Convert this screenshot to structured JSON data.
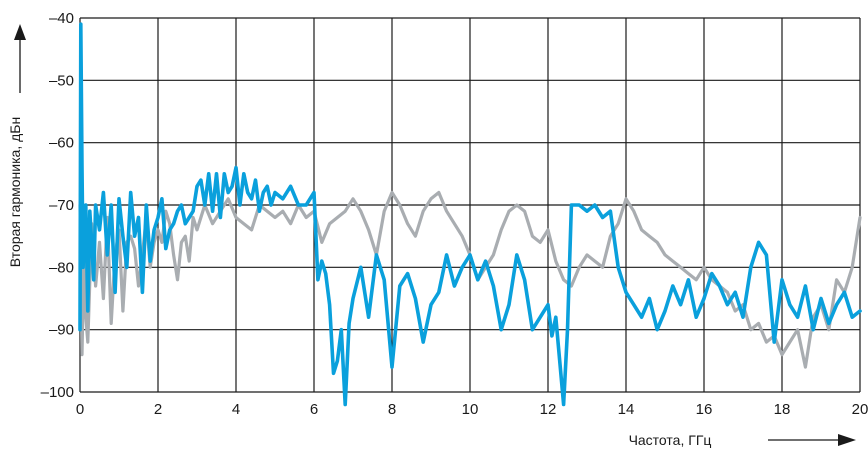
{
  "chart_data": {
    "type": "line",
    "title": "",
    "xlabel": "Частота, ГГц",
    "ylabel": "Вторая гармоника, дБн",
    "xlim": [
      0,
      20
    ],
    "ylim": [
      -100,
      -40
    ],
    "xticks": [
      0,
      2,
      4,
      6,
      8,
      10,
      12,
      14,
      16,
      18,
      20
    ],
    "yticks": [
      -40,
      -50,
      -60,
      -70,
      -80,
      -90,
      -100
    ],
    "xtick_labels": [
      "0",
      "2",
      "4",
      "6",
      "8",
      "10",
      "12",
      "14",
      "16",
      "18",
      "20"
    ],
    "ytick_labels": [
      "–40",
      "–50",
      "–60",
      "–70",
      "–80",
      "–90",
      "–100"
    ],
    "grid": true,
    "colors": {
      "grid": "#1a1a1a",
      "series_blue": "#0aa0dc",
      "series_gray": "#a9adb1"
    },
    "series": [
      {
        "color": "#a9adb1",
        "x": [
          0.0,
          0.05,
          0.1,
          0.15,
          0.2,
          0.3,
          0.4,
          0.5,
          0.6,
          0.7,
          0.8,
          0.9,
          1.0,
          1.1,
          1.2,
          1.3,
          1.4,
          1.5,
          1.6,
          1.7,
          1.8,
          1.9,
          2.0,
          2.1,
          2.2,
          2.3,
          2.4,
          2.5,
          2.6,
          2.7,
          2.8,
          2.9,
          3.0,
          3.2,
          3.4,
          3.6,
          3.8,
          4.0,
          4.2,
          4.4,
          4.6,
          4.8,
          5.0,
          5.2,
          5.4,
          5.6,
          5.8,
          6.0,
          6.2,
          6.4,
          6.6,
          6.8,
          7.0,
          7.2,
          7.4,
          7.6,
          7.8,
          8.0,
          8.2,
          8.4,
          8.6,
          8.8,
          9.0,
          9.2,
          9.4,
          9.6,
          9.8,
          10.0,
          10.2,
          10.4,
          10.6,
          10.8,
          11.0,
          11.2,
          11.4,
          11.6,
          11.8,
          12.0,
          12.2,
          12.4,
          12.6,
          12.8,
          13.0,
          13.2,
          13.4,
          13.6,
          13.8,
          14.0,
          14.2,
          14.4,
          14.6,
          14.8,
          15.0,
          15.2,
          15.4,
          15.6,
          15.8,
          16.0,
          16.2,
          16.4,
          16.6,
          16.8,
          17.0,
          17.2,
          17.4,
          17.6,
          17.8,
          18.0,
          18.2,
          18.4,
          18.6,
          18.8,
          19.0,
          19.2,
          19.4,
          19.6,
          19.8,
          20.0
        ],
        "y": [
          -70,
          -94,
          -78,
          -88,
          -92,
          -73,
          -83,
          -76,
          -85,
          -72,
          -89,
          -78,
          -74,
          -87,
          -76,
          -75,
          -77,
          -83,
          -78,
          -72,
          -80,
          -76,
          -74,
          -76,
          -71,
          -73,
          -78,
          -82,
          -76,
          -75,
          -79,
          -72,
          -74,
          -70,
          -73,
          -71,
          -69,
          -72,
          -73,
          -74,
          -70,
          -71,
          -72,
          -71,
          -73,
          -70,
          -72,
          -71,
          -76,
          -73,
          -72,
          -71,
          -69,
          -71,
          -74,
          -78,
          -71,
          -68,
          -70,
          -73,
          -75,
          -71,
          -69,
          -68,
          -71,
          -73,
          -75,
          -78,
          -82,
          -80,
          -78,
          -74,
          -71,
          -70,
          -71,
          -75,
          -76,
          -74,
          -79,
          -82,
          -83,
          -80,
          -78,
          -79,
          -80,
          -75,
          -73,
          -69,
          -71,
          -74,
          -75,
          -76,
          -78,
          -79,
          -80,
          -81,
          -82,
          -80,
          -82,
          -83,
          -84,
          -87,
          -86,
          -90,
          -89,
          -92,
          -91,
          -94,
          -92,
          -90,
          -96,
          -88,
          -86,
          -90,
          -82,
          -84,
          -80,
          -72
        ]
      },
      {
        "color": "#0aa0dc",
        "x": [
          0.0,
          0.02,
          0.05,
          0.08,
          0.12,
          0.15,
          0.2,
          0.25,
          0.3,
          0.35,
          0.4,
          0.5,
          0.6,
          0.7,
          0.8,
          0.9,
          1.0,
          1.1,
          1.2,
          1.3,
          1.4,
          1.5,
          1.6,
          1.7,
          1.8,
          1.9,
          2.0,
          2.1,
          2.2,
          2.3,
          2.4,
          2.5,
          2.6,
          2.7,
          2.8,
          2.9,
          3.0,
          3.1,
          3.2,
          3.3,
          3.4,
          3.5,
          3.6,
          3.7,
          3.8,
          3.9,
          4.0,
          4.1,
          4.2,
          4.3,
          4.4,
          4.5,
          4.6,
          4.7,
          4.8,
          4.9,
          5.0,
          5.2,
          5.4,
          5.6,
          5.8,
          6.0,
          6.1,
          6.2,
          6.3,
          6.4,
          6.5,
          6.6,
          6.7,
          6.8,
          6.9,
          7.0,
          7.2,
          7.4,
          7.6,
          7.8,
          8.0,
          8.2,
          8.4,
          8.6,
          8.8,
          9.0,
          9.2,
          9.4,
          9.6,
          9.8,
          10.0,
          10.2,
          10.4,
          10.6,
          10.8,
          11.0,
          11.2,
          11.4,
          11.6,
          11.8,
          12.0,
          12.1,
          12.2,
          12.3,
          12.4,
          12.5,
          12.6,
          12.8,
          13.0,
          13.2,
          13.4,
          13.6,
          13.8,
          14.0,
          14.2,
          14.4,
          14.6,
          14.8,
          15.0,
          15.2,
          15.4,
          15.6,
          15.8,
          16.0,
          16.2,
          16.4,
          16.6,
          16.8,
          17.0,
          17.2,
          17.4,
          17.6,
          17.8,
          18.0,
          18.2,
          18.4,
          18.6,
          18.8,
          19.0,
          19.2,
          19.4,
          19.6,
          19.8,
          20.0
        ],
        "y": [
          -90,
          -41,
          -64,
          -80,
          -72,
          -70,
          -87,
          -71,
          -76,
          -82,
          -70,
          -74,
          -68,
          -78,
          -70,
          -84,
          -69,
          -75,
          -80,
          -68,
          -75,
          -72,
          -84,
          -70,
          -79,
          -74,
          -72,
          -69,
          -77,
          -74,
          -73,
          -71,
          -70,
          -73,
          -72,
          -71,
          -67,
          -66,
          -70,
          -65,
          -71,
          -65,
          -72,
          -65,
          -68,
          -67,
          -64,
          -70,
          -65,
          -68,
          -69,
          -66,
          -71,
          -68,
          -67,
          -70,
          -68,
          -69,
          -67,
          -70,
          -70,
          -68,
          -82,
          -79,
          -81,
          -86,
          -97,
          -95,
          -90,
          -102,
          -89,
          -85,
          -80,
          -88,
          -78,
          -82,
          -96,
          -83,
          -81,
          -85,
          -92,
          -86,
          -84,
          -78,
          -83,
          -80,
          -78,
          -82,
          -79,
          -83,
          -90,
          -86,
          -78,
          -82,
          -90,
          -88,
          -86,
          -91,
          -88,
          -95,
          -102,
          -90,
          -70,
          -70,
          -71,
          -70,
          -72,
          -71,
          -80,
          -84,
          -86,
          -88,
          -85,
          -90,
          -87,
          -83,
          -86,
          -82,
          -88,
          -85,
          -81,
          -83,
          -86,
          -84,
          -88,
          -80,
          -76,
          -78,
          -92,
          -82,
          -86,
          -88,
          -83,
          -90,
          -85,
          -89,
          -86,
          -84,
          -88,
          -87
        ]
      }
    ]
  }
}
